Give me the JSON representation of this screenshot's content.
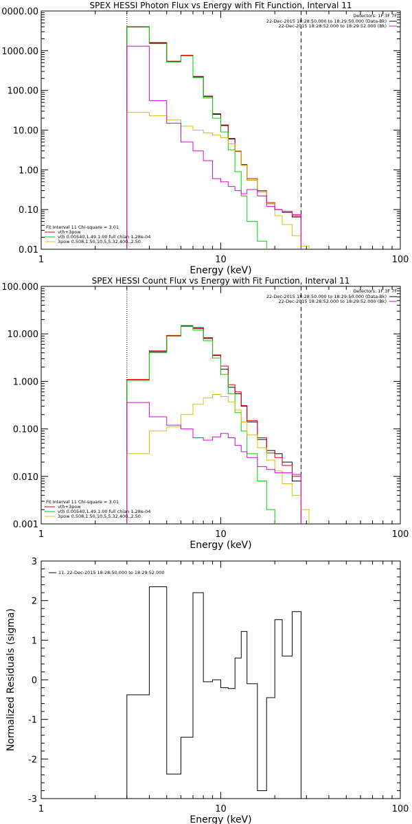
{
  "chart_data": [
    {
      "type": "line",
      "title": "SPEX HESSI Photon Flux vs Energy with Fit Function, Interval 11",
      "xlabel": "Energy (keV)",
      "ylabel": "",
      "xscale": "log",
      "yscale": "log",
      "xlim": [
        1,
        100
      ],
      "ylim": [
        0.01,
        10000
      ],
      "x_ticks": [
        "1",
        "10",
        "100"
      ],
      "y_ticks": [
        "0000.00",
        "1000.00",
        "100.00",
        "10.00",
        "1.00",
        "0.10",
        "0.01"
      ],
      "detectors": "Detectors: 1F 3F 7F",
      "legend_top": [
        {
          "text": "22-Dec-2015 18:28:50.000 to 18:29:50.000 (Data-Bk)",
          "color": "#000000"
        },
        {
          "text": "22-Dec-2015 18:28:52.000 to 18:29:52.000 (Bk)",
          "color": "#e000e0"
        }
      ],
      "legend_bottom": [
        {
          "text": "Fit Interval 11    Chi-square = 3.01",
          "color": "#000000"
        },
        {
          "text": "vth+3pow",
          "color": "#e00000"
        },
        {
          "text": "vth 0.00540,1.49,1.00  full chian 1.28e-04",
          "color": "#00d000"
        },
        {
          "text": "3pow 0.508,1.50,10.5,5.32,400.,2.50",
          "color": "#d8c000"
        }
      ],
      "vlines": [
        {
          "x": 3,
          "style": "dotted"
        },
        {
          "x": 28,
          "style": "dashed"
        }
      ],
      "bin_edges": [
        3,
        4,
        5,
        6,
        7,
        8,
        9,
        10,
        11,
        12,
        13,
        14,
        16,
        18,
        20,
        22,
        25,
        28
      ],
      "series": [
        {
          "name": "Data-Bk",
          "color": "#000000",
          "values": [
            4000,
            1550,
            530,
            750,
            220,
            70,
            25,
            13,
            6,
            3,
            1.35,
            0.55,
            0.28,
            0.14,
            0.1,
            0.085,
            0.065
          ]
        },
        {
          "name": "vth+3pow",
          "color": "#e00000",
          "values": [
            3950,
            1600,
            545,
            770,
            225,
            72,
            26,
            13.5,
            6.2,
            2.9,
            1.3,
            0.6,
            0.3,
            0.15,
            0.1,
            0.085,
            0.07
          ]
        },
        {
          "name": "vth",
          "color": "#00d000",
          "edges": [
            3,
            4,
            5,
            6,
            7,
            8,
            9,
            10,
            11,
            12,
            13,
            14,
            16,
            18,
            20
          ],
          "values": [
            3900,
            1500,
            520,
            740,
            210,
            65,
            20,
            9,
            3.2,
            0.9,
            0.22,
            0.05,
            0.016,
            0.008
          ]
        },
        {
          "name": "3pow",
          "color": "#d8c000",
          "edges": [
            3,
            4,
            5,
            6,
            7,
            8,
            9,
            10,
            11,
            12,
            13,
            14,
            16,
            18,
            20,
            22,
            25,
            28,
            31
          ],
          "values": [
            28,
            23,
            18,
            12.5,
            10,
            8.5,
            7.5,
            6.5,
            4.5,
            3,
            1.3,
            0.55,
            0.28,
            0.14,
            0.07,
            0.042,
            0.022,
            0.012
          ]
        },
        {
          "name": "Bk",
          "color": "#e000e0",
          "edges": [
            3,
            4,
            5,
            6,
            7,
            8,
            9,
            10,
            11,
            12,
            13,
            14,
            16,
            18,
            20,
            22,
            25,
            28
          ],
          "values": [
            1300,
            55,
            15,
            5,
            3,
            1.7,
            0.6,
            0.5,
            0.38,
            0.3,
            0.25,
            0.32,
            0.22,
            0.12,
            0.1,
            0.09,
            0.075
          ]
        }
      ]
    },
    {
      "type": "line",
      "title": "SPEX HESSI Count Flux vs Energy with Fit Function, Interval 11",
      "xlabel": "Energy (keV)",
      "ylabel": "",
      "xscale": "log",
      "yscale": "log",
      "xlim": [
        1,
        100
      ],
      "ylim": [
        0.001,
        100
      ],
      "x_ticks": [
        "1",
        "10",
        "100"
      ],
      "y_ticks": [
        "100.000",
        "10.000",
        "1.000",
        "0.100",
        "0.010",
        "0.001"
      ],
      "detectors": "Detectors: 1F 3F 7F",
      "legend_top": [
        {
          "text": "22-Dec-2015 18:28:50.000 to 18:29:50.000 (Data-Bk)",
          "color": "#000000"
        },
        {
          "text": "22-Dec-2015 18:28:52.000 to 18:29:52.000 (Bk)",
          "color": "#e000e0"
        }
      ],
      "legend_bottom": [
        {
          "text": "Fit Interval 11    Chi-square = 3.01",
          "color": "#000000"
        },
        {
          "text": "vth+3pow",
          "color": "#e00000"
        },
        {
          "text": "vth 0.00540,1.49,1.00  full chian 1.28e-04",
          "color": "#00d000"
        },
        {
          "text": "3pow 0.508,1.50,10.5,5.32,400.,2.50",
          "color": "#d8c000"
        }
      ],
      "vlines": [
        {
          "x": 3,
          "style": "dotted"
        },
        {
          "x": 28,
          "style": "dashed"
        }
      ],
      "bin_edges": [
        3,
        4,
        5,
        6,
        7,
        8,
        9,
        10,
        11,
        12,
        13,
        14,
        16,
        18,
        20,
        22,
        25,
        28
      ],
      "series": [
        {
          "name": "Data-Bk",
          "color": "#000000",
          "values": [
            1.05,
            4.2,
            9,
            14.5,
            13.5,
            8,
            3.5,
            1.8,
            0.75,
            0.55,
            0.3,
            0.14,
            0.06,
            0.035,
            0.03,
            0.02,
            0.008
          ]
        },
        {
          "name": "vth+3pow",
          "color": "#e00000",
          "values": [
            1.1,
            4.4,
            9.3,
            15,
            13,
            8.3,
            3.6,
            2.1,
            0.85,
            0.6,
            0.31,
            0.15,
            0.065,
            0.031,
            0.025,
            0.017,
            0.01
          ]
        },
        {
          "name": "vth",
          "color": "#00d000",
          "edges": [
            3,
            4,
            5,
            6,
            7,
            8,
            9,
            10,
            11,
            12,
            13,
            14,
            16,
            18,
            20
          ],
          "values": [
            1.05,
            4,
            9,
            15,
            12,
            7.2,
            3.1,
            1.4,
            0.55,
            0.22,
            0.09,
            0.03,
            0.008,
            0.002
          ]
        },
        {
          "name": "3pow",
          "color": "#d8c000",
          "edges": [
            3,
            4,
            5,
            6,
            7,
            8,
            9,
            10,
            11,
            12,
            13,
            14,
            16,
            18,
            20,
            22,
            25,
            28,
            31
          ],
          "values": [
            0.03,
            0.09,
            0.11,
            0.2,
            0.33,
            0.45,
            0.53,
            0.48,
            0.37,
            0.25,
            0.14,
            0.075,
            0.04,
            0.022,
            0.013,
            0.007,
            0.004,
            0.002
          ]
        },
        {
          "name": "Bk",
          "color": "#e000e0",
          "edges": [
            3,
            4,
            5,
            6,
            7,
            8,
            9,
            10,
            11,
            12,
            13,
            14,
            16,
            18,
            20,
            22,
            25,
            28
          ],
          "values": [
            0.36,
            0.18,
            0.12,
            0.1,
            0.065,
            0.058,
            0.068,
            0.08,
            0.065,
            0.045,
            0.033,
            0.025,
            0.016,
            0.014,
            0.012,
            0.012,
            0.011
          ]
        }
      ]
    },
    {
      "type": "line",
      "title": "",
      "xlabel": "Energy (keV)",
      "ylabel": "Normalized Residuals (sigma)",
      "xscale": "log",
      "yscale": "linear",
      "xlim": [
        1,
        100
      ],
      "ylim": [
        -3,
        3
      ],
      "x_ticks": [
        "1",
        "10",
        "100"
      ],
      "y_ticks": [
        "3",
        "2",
        "1",
        "0",
        "-1",
        "-2",
        "-3"
      ],
      "legend_top": [
        {
          "text": "11. 22-Dec-2015 18:28:50.000 to 18:29:52.000",
          "color": "#000000"
        }
      ],
      "bin_edges": [
        3,
        4,
        5,
        6,
        7,
        8,
        9,
        10,
        11,
        12,
        13,
        14,
        16,
        18,
        20,
        22,
        25,
        28
      ],
      "series": [
        {
          "name": "residuals",
          "color": "#000000",
          "values": [
            -0.38,
            2.35,
            -2.38,
            -1.45,
            2.2,
            -0.05,
            0.0,
            -0.2,
            -0.22,
            0.55,
            1.22,
            -0.1,
            -2.8,
            -0.45,
            1.52,
            0.6,
            1.72
          ]
        }
      ]
    }
  ]
}
